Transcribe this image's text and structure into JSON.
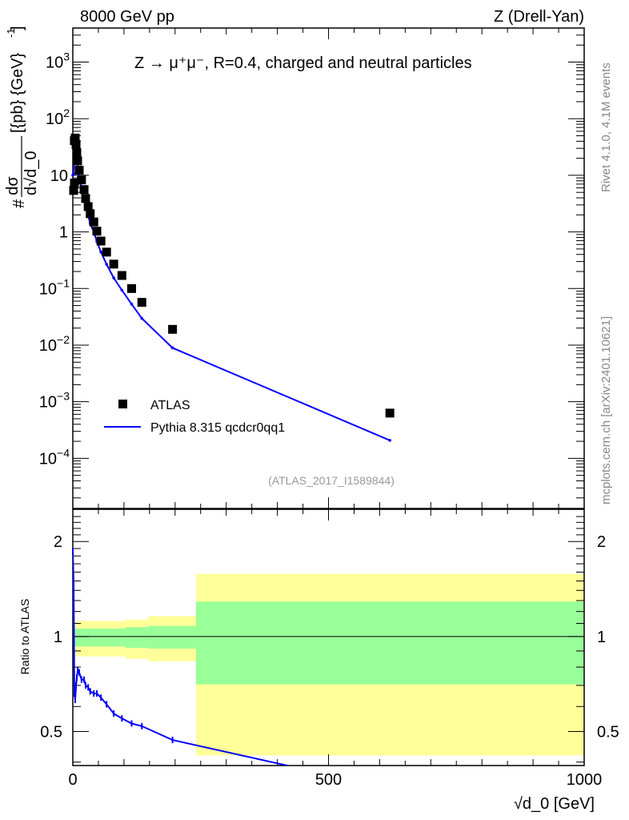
{
  "chart_data": [
    {
      "type": "scatter",
      "header_left": "8000 GeV pp",
      "header_right": "Z (Drell-Yan)",
      "title": "Z → μ⁺μ⁻, R=0.4, charged and neutral particles",
      "ylabel": "# dσ / d√d_0 [{pb} {GeV}⁻¹]",
      "ylabel_parts": {
        "hash": "#",
        "num": "dσ",
        "den": "d√d_0",
        "units": "[{pb} {GeV}",
        "exp": "-1",
        "close": "]"
      },
      "yscale": "log",
      "ylim": [
        1.3e-05,
        4000
      ],
      "xlim": [
        0,
        1000
      ],
      "ytick_labels": [
        {
          "value": 1000,
          "base": "10",
          "exp": "3"
        },
        {
          "value": 100,
          "base": "10",
          "exp": "2"
        },
        {
          "value": 10,
          "base": "10",
          "exp": ""
        },
        {
          "value": 1,
          "base": "1",
          "exp": ""
        },
        {
          "value": 0.1,
          "base": "10",
          "exp": "−1"
        },
        {
          "value": 0.01,
          "base": "10",
          "exp": "−2"
        },
        {
          "value": 0.001,
          "base": "10",
          "exp": "−3"
        },
        {
          "value": 0.0001,
          "base": "10",
          "exp": "−4"
        }
      ],
      "legend_position": "bottom-left",
      "watermark": "(ATLAS_2017_I1589844)",
      "side_text_1": "Rivet 4.1.0,  4.1M events",
      "side_text_2": "mcplots.cern.ch [arXiv:2401.10621]",
      "series": [
        {
          "name": "ATLAS",
          "color": "#000000",
          "marker": "square",
          "x": [
            0,
            1.6,
            3,
            4.7,
            6.3,
            7.8,
            9.4,
            12.5,
            17,
            22,
            25,
            30,
            34,
            41,
            47,
            55,
            66,
            80,
            96,
            115,
            135,
            195,
            620
          ],
          "y": [
            5.4,
            7.3,
            41,
            45.5,
            35,
            25,
            18,
            12.3,
            8.3,
            5.6,
            3.9,
            2.8,
            2.1,
            1.5,
            1.03,
            0.69,
            0.44,
            0.27,
            0.17,
            0.1,
            0.057,
            0.019,
            0.00063
          ]
        },
        {
          "name": "Pythia 8.315 qcdcr0qq1",
          "color": "#0000ff",
          "marker": "line",
          "x": [
            0,
            1.6,
            3,
            4.7,
            6.3,
            7.8,
            9.4,
            12.5,
            17,
            22,
            25,
            30,
            34,
            41,
            47,
            55,
            66,
            80,
            96,
            115,
            135,
            195,
            620
          ],
          "ratio": [
            1.86,
            1.46,
            0.66,
            0.63,
            0.7,
            0.74,
            0.78,
            0.77,
            0.73,
            0.73,
            0.7,
            0.69,
            0.67,
            0.66,
            0.66,
            0.64,
            0.61,
            0.57,
            0.55,
            0.53,
            0.52,
            0.47,
            0.33
          ]
        }
      ]
    },
    {
      "type": "line",
      "ylabel": "Ratio to ATLAS",
      "xlabel": "√d_0 [GeV]",
      "yscale": "log",
      "ylim": [
        0.39,
        2.53
      ],
      "xlim": [
        0,
        1000
      ],
      "xtick_labels": [
        "0",
        "500",
        "1000"
      ],
      "xtick_values": [
        0,
        500,
        1000
      ],
      "ytick_labels": [
        "2",
        "1",
        "0.5"
      ],
      "ytick_values": [
        2,
        1,
        0.5
      ],
      "bands": [
        {
          "x": [
            0,
            103
          ],
          "total": [
            0.865,
            1.12
          ],
          "stat": [
            0.93,
            1.06
          ]
        },
        {
          "x": [
            103,
            147
          ],
          "total": [
            0.85,
            1.13
          ],
          "stat": [
            0.92,
            1.07
          ]
        },
        {
          "x": [
            147,
            241
          ],
          "total": [
            0.835,
            1.16
          ],
          "stat": [
            0.916,
            1.08
          ]
        },
        {
          "x": [
            241,
            1000
          ],
          "total": [
            0.42,
            1.58
          ],
          "stat": [
            0.705,
            1.29
          ]
        }
      ],
      "band_colors": {
        "total": "#ffff99",
        "stat": "#99ff99"
      }
    }
  ]
}
